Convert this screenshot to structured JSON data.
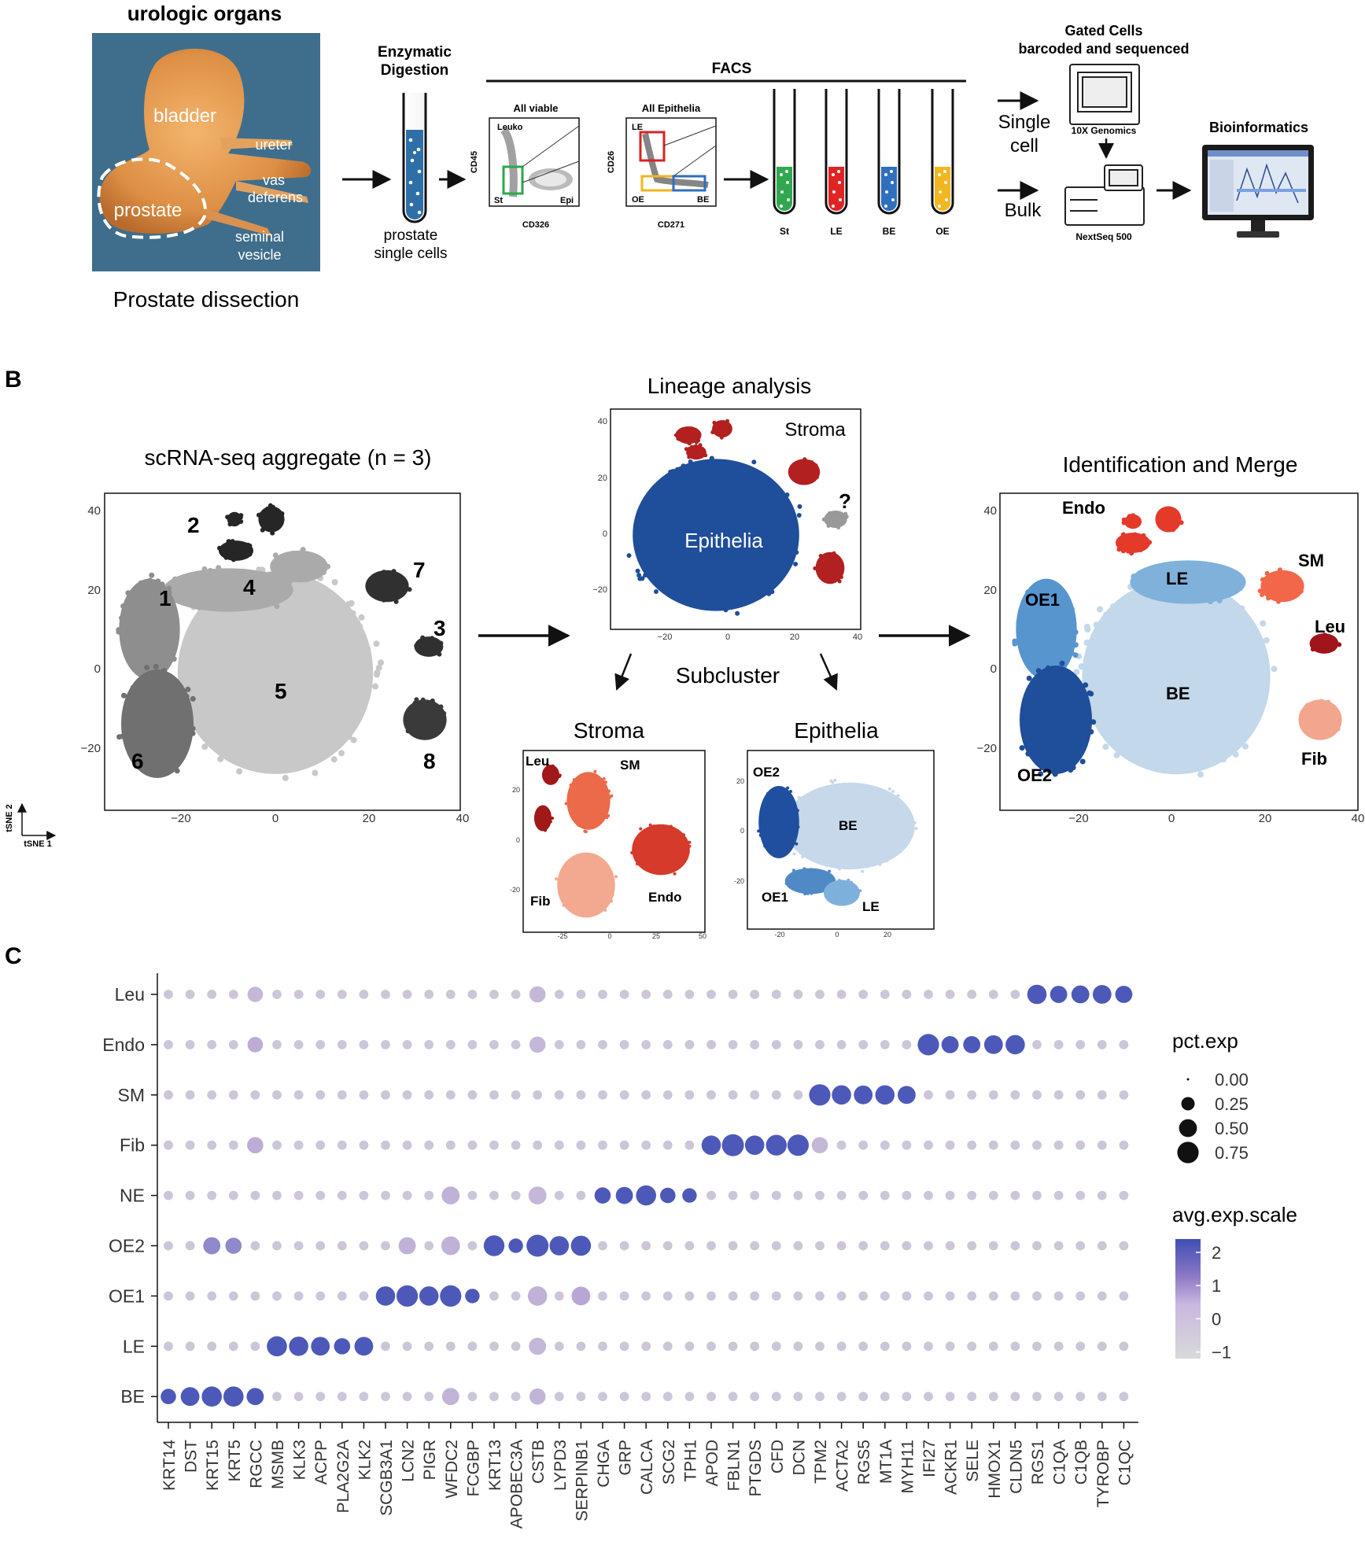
{
  "panel_a": {
    "photo_title": "urologic organs",
    "photo_labels": {
      "bladder": "bladder",
      "prostate": "prostate",
      "ureter": "ureter",
      "vas": "vas",
      "deferens": "deferens",
      "seminal": "seminal",
      "vesicle": "vesicle"
    },
    "photo_caption": "Prostate dissection",
    "digestion_title_1": "Enzymatic",
    "digestion_title_2": "Digestion",
    "digestion_caption_1": "prostate",
    "digestion_caption_2": "single cells",
    "facs_label": "FACS",
    "plot1": {
      "title": "All viable",
      "ylabel": "CD45",
      "xlabel": "CD326",
      "gates": [
        "Leuko",
        "St",
        "Epi"
      ]
    },
    "plot2": {
      "title": "All Epithelia",
      "ylabel": "CD26",
      "xlabel": "CD271",
      "gates": [
        "LE",
        "OE",
        "BE"
      ]
    },
    "tubes": [
      {
        "label": "St",
        "color": "#2fa84f"
      },
      {
        "label": "LE",
        "color": "#e02424"
      },
      {
        "label": "BE",
        "color": "#2f6fbf"
      },
      {
        "label": "OE",
        "color": "#f2b61f"
      }
    ],
    "single_cell_1": "Single",
    "single_cell_2": "cell",
    "bulk": "Bulk",
    "gated_title_1": "Gated Cells",
    "gated_title_2": "barcoded and sequenced",
    "genomics_label": "10X Genomics",
    "nextseq_label": "NextSeq 500",
    "bioinformatics_label": "Bioinformatics"
  },
  "panel_b": {
    "letter": "B",
    "aggregate_title": "scRNA-seq aggregate (n = 3)",
    "lineage_title": "Lineage analysis",
    "subcluster_label": "Subcluster",
    "stroma_title": "Stroma",
    "epithelia_title": "Epithelia",
    "identification_title": "Identification and Merge",
    "tsne_axis_1": "tSNE 1",
    "tsne_axis_2": "tSNE 2",
    "cluster_numbers": [
      "1",
      "2",
      "3",
      "4",
      "5",
      "6",
      "7",
      "8"
    ],
    "lineage_labels": {
      "stroma": "Stroma",
      "epithelia": "Epithelia",
      "unknown": "?"
    },
    "stroma_labels": [
      "Leu",
      "SM",
      "Fib",
      "Endo"
    ],
    "epi_labels": [
      "OE2",
      "BE",
      "OE1",
      "LE"
    ],
    "merge_labels": [
      "Endo",
      "LE",
      "SM",
      "OE1",
      "Leu",
      "BE",
      "OE2",
      "Fib"
    ],
    "main_ticks_x": [
      "−20",
      "0",
      "20",
      "40"
    ],
    "main_ticks_y": [
      "40",
      "20",
      "0",
      "−20"
    ],
    "small_ticks_x": [
      "−20",
      "0",
      "20",
      "40"
    ],
    "small_ticks_y": [
      "40",
      "20",
      "0",
      "−20"
    ],
    "stroma_ticks_x": [
      "-25",
      "0",
      "25",
      "50"
    ],
    "stroma_ticks_y": [
      "20",
      "0",
      "-20"
    ],
    "epi_ticks_x": [
      "-20",
      "0",
      "20"
    ],
    "epi_ticks_y": [
      "20",
      "0",
      "-20"
    ]
  },
  "panel_c": {
    "letter": "C",
    "legend_size_title": "pct.exp",
    "legend_size_values": [
      "0.00",
      "0.25",
      "0.50",
      "0.75"
    ],
    "legend_color_title": "avg.exp.scale",
    "legend_color_ticks": [
      "2",
      "1",
      "0",
      "−1"
    ],
    "color_low": "#d9d9d9",
    "color_mid": "#b9a6d6",
    "color_high": "#3f4fb5"
  },
  "chart_data": {
    "type": "dotplot",
    "xlabel": "",
    "ylabel": "",
    "cell_types": [
      "Leu",
      "Endo",
      "SM",
      "Fib",
      "NE",
      "OE2",
      "OE1",
      "LE",
      "BE"
    ],
    "genes": [
      "KRT14",
      "DST",
      "KRT15",
      "KRT5",
      "RGCC",
      "MSMB",
      "KLK3",
      "ACPP",
      "PLA2G2A",
      "KLK2",
      "SCGB3A1",
      "LCN2",
      "PIGR",
      "WFDC2",
      "FCGBP",
      "KRT13",
      "APOBEC3A",
      "CSTB",
      "LYPD3",
      "SERPINB1",
      "CHGA",
      "GRP",
      "CALCA",
      "SCG2",
      "TPH1",
      "APOD",
      "FBLN1",
      "PTGDS",
      "CFD",
      "DCN",
      "TPM2",
      "ACTA2",
      "RGS5",
      "MT1A",
      "MYH11",
      "IFI27",
      "ACKR1",
      "SELE",
      "HMOX1",
      "CLDN5",
      "RGS1",
      "C1QA",
      "C1QB",
      "TYROBP",
      "C1QC"
    ],
    "highlights": [
      {
        "cell_type": "BE",
        "genes": [
          "KRT14",
          "DST",
          "KRT15",
          "KRT5",
          "RGCC"
        ]
      },
      {
        "cell_type": "LE",
        "genes": [
          "MSMB",
          "KLK3",
          "ACPP",
          "PLA2G2A",
          "KLK2"
        ]
      },
      {
        "cell_type": "OE1",
        "genes": [
          "SCGB3A1",
          "LCN2",
          "PIGR",
          "WFDC2",
          "FCGBP"
        ]
      },
      {
        "cell_type": "OE2",
        "genes": [
          "KRT13",
          "APOBEC3A",
          "CSTB",
          "LYPD3",
          "SERPINB1"
        ]
      },
      {
        "cell_type": "NE",
        "genes": [
          "CHGA",
          "GRP",
          "CALCA",
          "SCG2",
          "TPH1"
        ]
      },
      {
        "cell_type": "Fib",
        "genes": [
          "APOD",
          "FBLN1",
          "PTGDS",
          "CFD",
          "DCN"
        ]
      },
      {
        "cell_type": "SM",
        "genes": [
          "TPM2",
          "ACTA2",
          "RGS5",
          "MT1A",
          "MYH11"
        ]
      },
      {
        "cell_type": "Endo",
        "genes": [
          "IFI27",
          "ACKR1",
          "SELE",
          "HMOX1",
          "CLDN5"
        ]
      },
      {
        "cell_type": "Leu",
        "genes": [
          "RGS1",
          "C1QA",
          "C1QB",
          "TYROBP",
          "C1QC"
        ]
      }
    ],
    "marker_pct": {
      "BE": [
        0.35,
        0.55,
        0.65,
        0.65,
        0.45
      ],
      "LE": [
        0.65,
        0.6,
        0.55,
        0.4,
        0.55
      ],
      "OE1": [
        0.6,
        0.75,
        0.6,
        0.75,
        0.3
      ],
      "OE2": [
        0.7,
        0.3,
        0.8,
        0.6,
        0.65
      ],
      "NE": [
        0.4,
        0.45,
        0.65,
        0.35,
        0.3
      ],
      "Fib": [
        0.6,
        0.8,
        0.6,
        0.7,
        0.75
      ],
      "SM": [
        0.75,
        0.6,
        0.55,
        0.6,
        0.5
      ],
      "Endo": [
        0.75,
        0.45,
        0.45,
        0.55,
        0.6
      ],
      "Leu": [
        0.6,
        0.45,
        0.5,
        0.55,
        0.45
      ]
    },
    "marker_scale": 2.2,
    "secondary": [
      {
        "cell_type": "OE2",
        "gene": "KRT15",
        "pct": 0.45,
        "scale": 1.2
      },
      {
        "cell_type": "OE2",
        "gene": "KRT5",
        "pct": 0.4,
        "scale": 1.2
      },
      {
        "cell_type": "OE2",
        "gene": "LCN2",
        "pct": 0.45,
        "scale": 0.2
      },
      {
        "cell_type": "OE2",
        "gene": "WFDC2",
        "pct": 0.55,
        "scale": 0.2
      },
      {
        "cell_type": "OE1",
        "gene": "CSTB",
        "pct": 0.6,
        "scale": 0.2
      },
      {
        "cell_type": "OE1",
        "gene": "SERPINB1",
        "pct": 0.55,
        "scale": 0.6
      },
      {
        "cell_type": "BE",
        "gene": "WFDC2",
        "pct": 0.45,
        "scale": 0.1
      },
      {
        "cell_type": "BE",
        "gene": "CSTB",
        "pct": 0.4,
        "scale": 0.1
      },
      {
        "cell_type": "LE",
        "gene": "CSTB",
        "pct": 0.45,
        "scale": 0.0
      },
      {
        "cell_type": "NE",
        "gene": "WFDC2",
        "pct": 0.5,
        "scale": 0.2
      },
      {
        "cell_type": "NE",
        "gene": "CSTB",
        "pct": 0.5,
        "scale": 0.0
      },
      {
        "cell_type": "Fib",
        "gene": "TPM2",
        "pct": 0.4,
        "scale": 0.0
      },
      {
        "cell_type": "Fib",
        "gene": "RGCC",
        "pct": 0.4,
        "scale": 0.4
      },
      {
        "cell_type": "Leu",
        "gene": "CSTB",
        "pct": 0.4,
        "scale": 0.0
      },
      {
        "cell_type": "Endo",
        "gene": "CSTB",
        "pct": 0.4,
        "scale": 0.0
      },
      {
        "cell_type": "Endo",
        "gene": "RGCC",
        "pct": 0.35,
        "scale": 0.4
      },
      {
        "cell_type": "Leu",
        "gene": "RGCC",
        "pct": 0.35,
        "scale": 0.0
      }
    ],
    "background_pct": 0.1,
    "background_scale": -0.5,
    "size_legend": [
      0.0,
      0.25,
      0.5,
      0.75
    ],
    "color_range": [
      -1.2,
      2.4
    ]
  }
}
